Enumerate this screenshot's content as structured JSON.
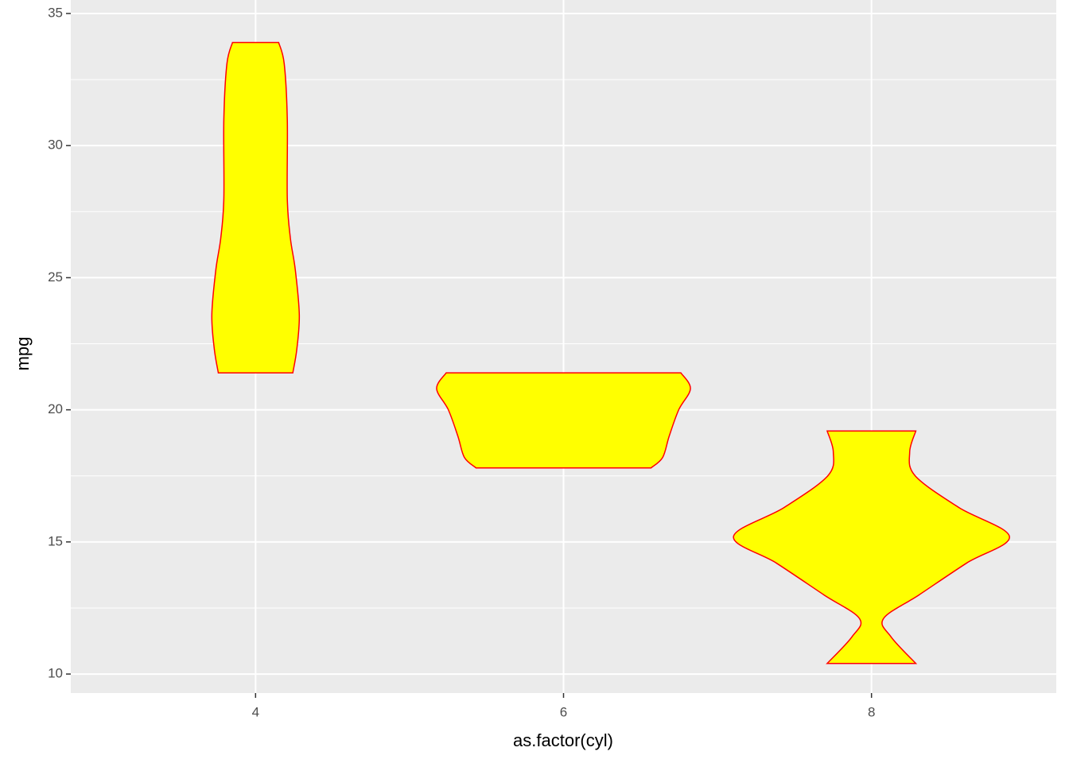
{
  "chart_data": {
    "type": "violin",
    "xlabel": "as.factor(cyl)",
    "ylabel": "mpg",
    "categories": [
      "4",
      "6",
      "8"
    ],
    "violins": [
      {
        "y": [
          33.9,
          33.1,
          31.0,
          28.0,
          26.5,
          25.3,
          23.6,
          22.3,
          21.4
        ],
        "width": [
          0.075,
          0.093,
          0.103,
          0.103,
          0.113,
          0.129,
          0.142,
          0.134,
          0.121
        ]
      },
      {
        "y": [
          21.4,
          20.8,
          20.0,
          19.0,
          18.2,
          17.8
        ],
        "width": [
          0.381,
          0.412,
          0.374,
          0.343,
          0.322,
          0.284
        ]
      },
      {
        "y": [
          19.2,
          18.4,
          17.5,
          16.3,
          15.2,
          14.2,
          13.0,
          12.1,
          11.4,
          10.4
        ],
        "width": [
          0.144,
          0.124,
          0.142,
          0.284,
          0.448,
          0.309,
          0.155,
          0.039,
          0.064,
          0.144
        ]
      }
    ],
    "fill": "#ffff00",
    "stroke": "#ff0000",
    "ylim": [
      9.28,
      35.51
    ],
    "yticks": [
      10,
      15,
      20,
      25,
      30,
      35
    ],
    "grid": true,
    "minor_grid": true,
    "panel_color": "#ebebeb"
  }
}
